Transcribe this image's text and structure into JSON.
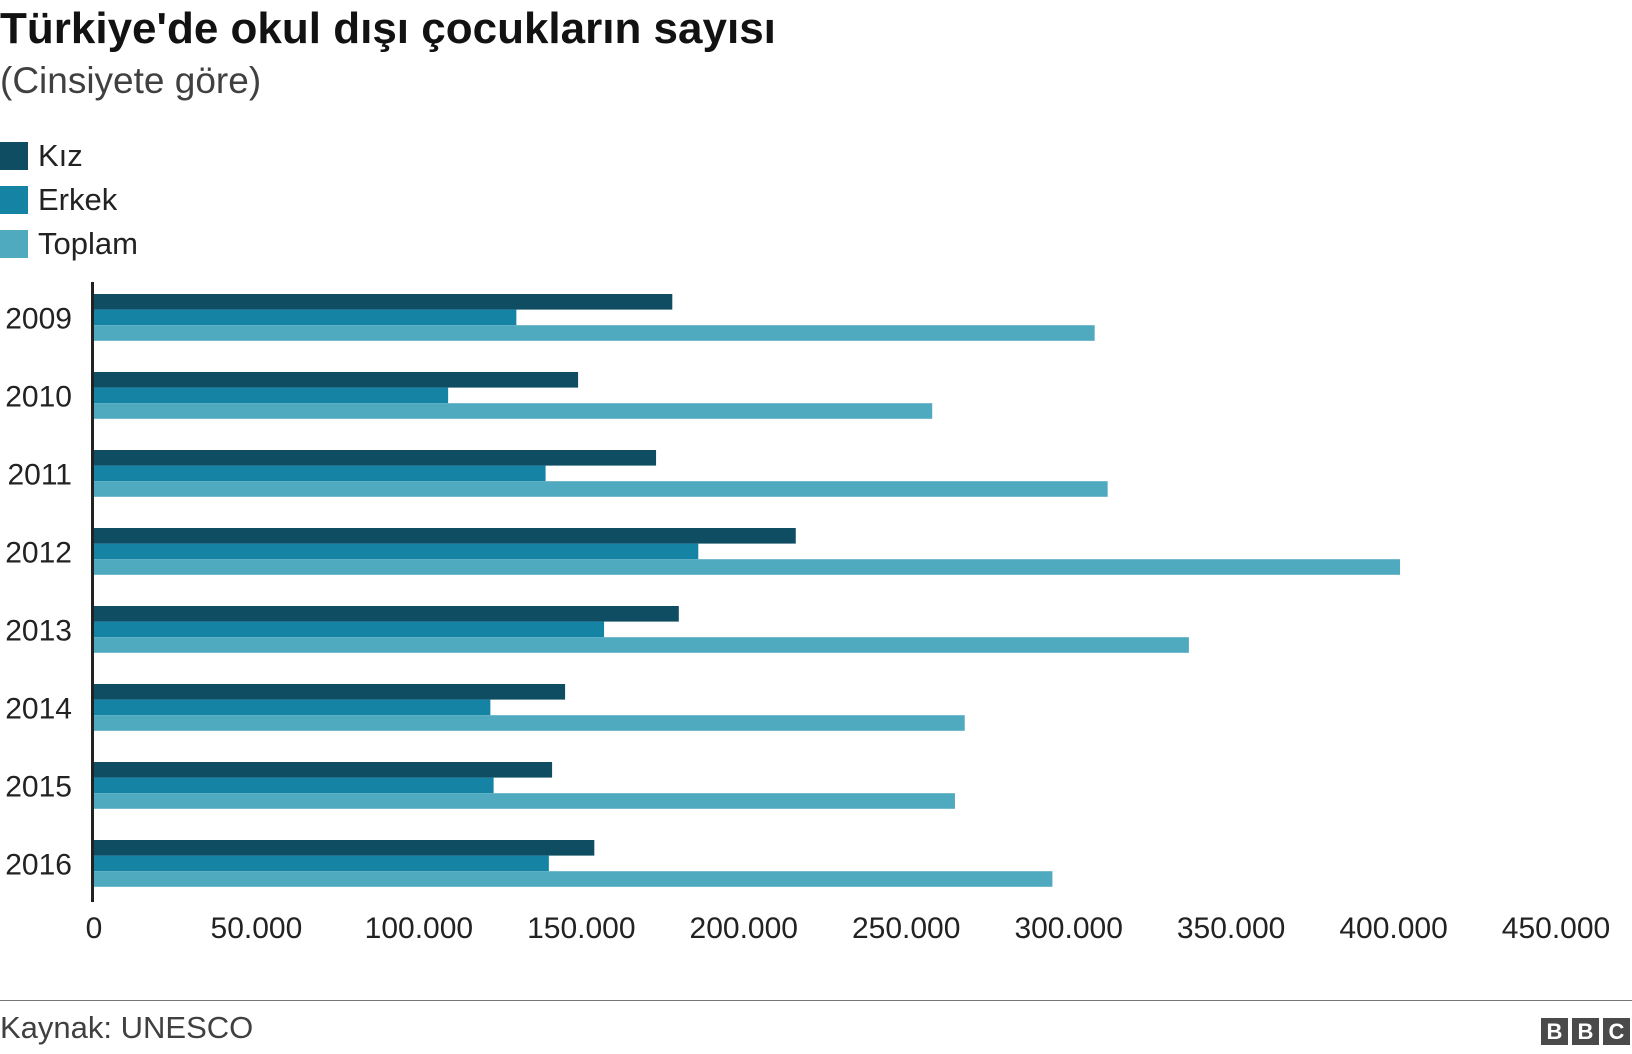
{
  "title": "Türkiye'de okul dışı çocukların sayısı",
  "subtitle": "(Cinsiyete göre)",
  "source": "Kaynak: UNESCO",
  "logo": [
    "B",
    "B",
    "C"
  ],
  "colors": {
    "kiz": "#0e4d62",
    "erkek": "#1583a3",
    "toplam": "#4fa9bf",
    "axis": "#222222"
  },
  "chart_data": {
    "type": "bar",
    "orientation": "horizontal",
    "title": "Türkiye'de okul dışı çocukların sayısı",
    "subtitle": "(Cinsiyete göre)",
    "categories": [
      "2009",
      "2010",
      "2011",
      "2012",
      "2013",
      "2014",
      "2015",
      "2016"
    ],
    "series": [
      {
        "name": "Kız",
        "color": "#0e4d62",
        "values": [
          178000,
          149000,
          173000,
          216000,
          180000,
          145000,
          141000,
          154000
        ]
      },
      {
        "name": "Erkek",
        "color": "#1583a3",
        "values": [
          130000,
          109000,
          139000,
          186000,
          157000,
          122000,
          123000,
          140000
        ]
      },
      {
        "name": "Toplam",
        "color": "#4fa9bf",
        "values": [
          308000,
          258000,
          312000,
          402000,
          337000,
          268000,
          265000,
          295000
        ]
      }
    ],
    "xlim": [
      0,
      450000
    ],
    "xticks": [
      0,
      50000,
      100000,
      150000,
      200000,
      250000,
      300000,
      350000,
      400000,
      450000
    ],
    "xtick_labels": [
      "0",
      "50.000",
      "100.000",
      "150.000",
      "200.000",
      "250.000",
      "300.000",
      "350.000",
      "400.000",
      "450.000"
    ],
    "grid": false,
    "legend_position": "top-left"
  }
}
